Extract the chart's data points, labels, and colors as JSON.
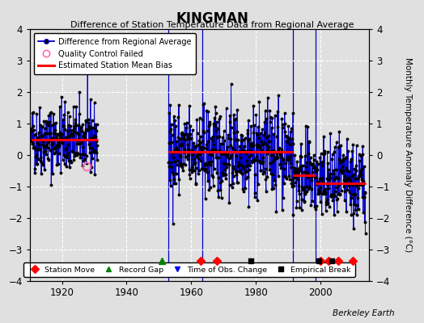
{
  "title": "KINGMAN",
  "subtitle": "Difference of Station Temperature Data from Regional Average",
  "ylabel": "Monthly Temperature Anomaly Difference (°C)",
  "xlim": [
    1910,
    2015
  ],
  "ylim": [
    -4,
    4
  ],
  "yticks": [
    -4,
    -3,
    -2,
    -1,
    0,
    1,
    2,
    3,
    4
  ],
  "xticks": [
    1920,
    1940,
    1960,
    1980,
    2000
  ],
  "background_color": "#e0e0e0",
  "plot_bg_color": "#e0e0e0",
  "grid_color": "#ffffff",
  "data_color": "#0000cc",
  "data_marker_color": "#000000",
  "bias_color": "#ff0000",
  "qc_color": "#ff69b4",
  "watermark": "Berkeley Earth",
  "segment1_start": 1910.5,
  "segment1_end": 1931.0,
  "segment1_mean": 0.5,
  "segment2_start": 1953.0,
  "segment2_end": 1991.5,
  "segment2_mean": 0.1,
  "segment3_start": 1991.5,
  "segment3_end": 1998.5,
  "segment3_mean": -0.65,
  "segment4_start": 1998.5,
  "segment4_end": 2014.0,
  "segment4_mean": -0.9,
  "vertical_lines": [
    1953.0,
    1963.5,
    1991.5,
    1998.5
  ],
  "station_moves": [
    1963.0,
    1968.0,
    2000.0,
    2002.5,
    2005.5,
    2010.0
  ],
  "record_gaps": [
    1951.0
  ],
  "obs_changes": [],
  "empirical_breaks": [
    1978.5,
    1999.5,
    2003.5
  ],
  "qc_failed_x": [
    1927.5
  ],
  "qc_failed_y": [
    -0.35
  ],
  "event_y": -3.35,
  "seg1_std": 0.55,
  "seg2_std": 0.7,
  "seg3_std": 0.6,
  "seg4_std": 0.65
}
